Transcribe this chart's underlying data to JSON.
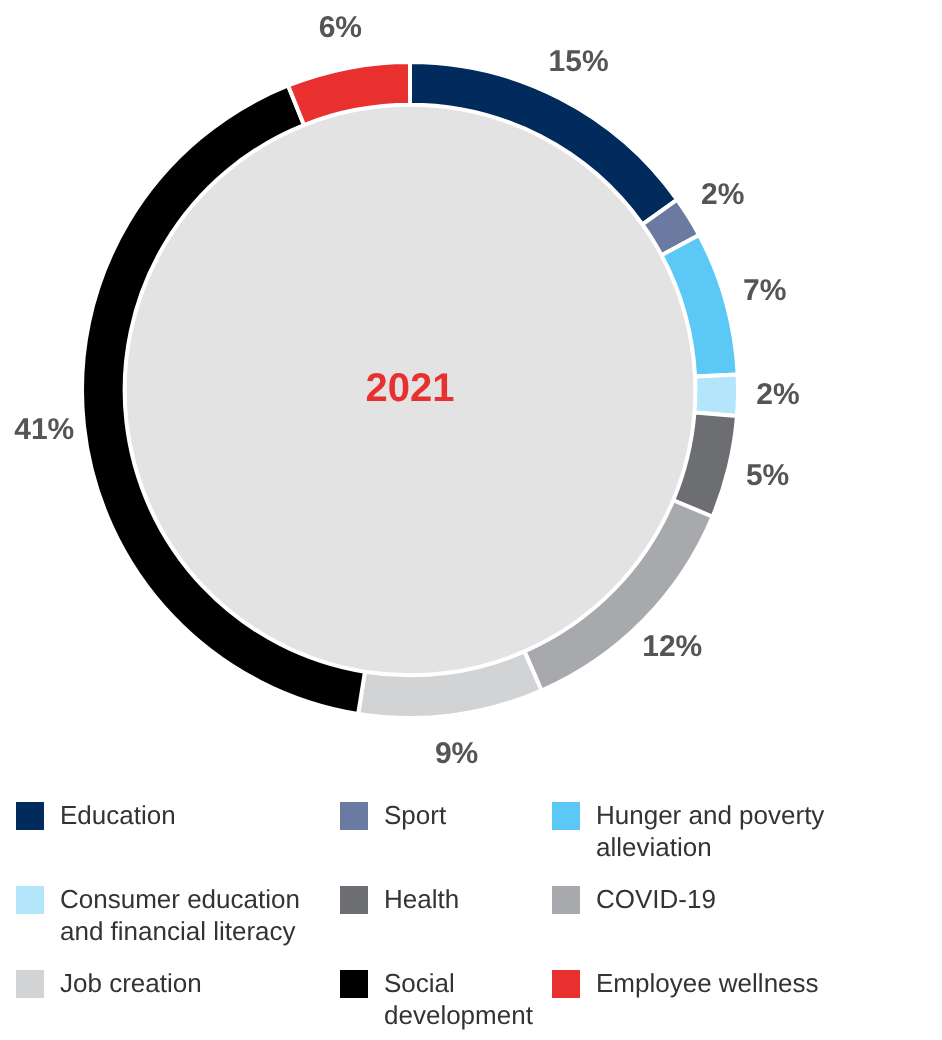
{
  "chart_data": {
    "type": "donut",
    "categories": [
      "Education",
      "Sport",
      "Hunger and poverty alleviation",
      "Consumer education and financial literacy",
      "Health",
      "COVID-19",
      "Job creation",
      "Social development",
      "Employee wellness"
    ],
    "values": [
      15,
      2,
      7,
      2,
      5,
      12,
      9,
      41,
      6
    ],
    "value_labels": [
      "15%",
      "2%",
      "7%",
      "2%",
      "5%",
      "12%",
      "9%",
      "41%",
      "6%"
    ],
    "colors": [
      "#002b5c",
      "#6b7aa1",
      "#5bc8f5",
      "#b3e5fb",
      "#6d6e71",
      "#a7a9ac",
      "#d1d3d4",
      "#000000",
      "#e8312f"
    ],
    "annotations": [
      "2021"
    ],
    "legend": "bottom"
  }
}
